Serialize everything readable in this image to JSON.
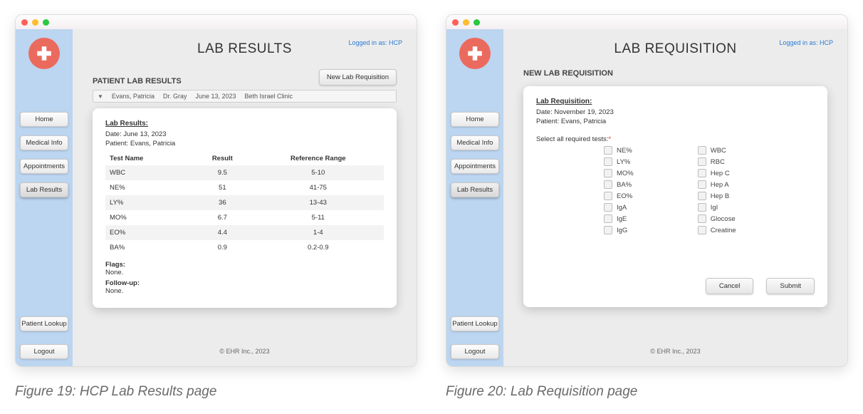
{
  "common": {
    "login_status_prefix": "Logged in as: ",
    "login_role": "HCP",
    "footer": "© EHR Inc., 2023",
    "nav": {
      "home": "Home",
      "medical_info": "Medical Info",
      "appointments": "Appointments",
      "lab_results": "Lab Results",
      "patient_lookup": "Patient Lookup",
      "logout": "Logout"
    },
    "colors": {
      "sidebar_bg": "#bcd5f0",
      "main_bg": "#ececec",
      "logo_bg": "#eb6a5e",
      "button_border": "#c7c7c7",
      "link": "#2a7bd4"
    }
  },
  "left": {
    "page_title": "LAB RESULTS",
    "section_heading": "PATIENT LAB RESULTS",
    "new_req_button": "New Lab Requisition",
    "summary": {
      "patient": "Evans, Patricia",
      "doctor": "Dr. Gray",
      "date": "June 13, 2023",
      "clinic": "Beth Israel Clinic"
    },
    "card": {
      "title": "Lab Results:",
      "date_label": "Date:",
      "date_value": "June 13, 2023",
      "patient_label": "Patient:",
      "patient_value": "Evans, Patricia",
      "columns": {
        "name": "Test Name",
        "result": "Result",
        "range": "Reference Range"
      },
      "rows": [
        {
          "name": "WBC",
          "result": "9.5",
          "range": "5-10"
        },
        {
          "name": "NE%",
          "result": "51",
          "range": "41-75"
        },
        {
          "name": "LY%",
          "result": "36",
          "range": "13-43"
        },
        {
          "name": "MO%",
          "result": "6.7",
          "range": "5-11"
        },
        {
          "name": "EO%",
          "result": "4.4",
          "range": "1-4"
        },
        {
          "name": "BA%",
          "result": "0.9",
          "range": "0.2-0.9"
        }
      ],
      "flags_label": "Flags:",
      "flags_value": "None.",
      "followup_label": "Follow-up:",
      "followup_value": "None."
    },
    "caption": "Figure 19: HCP Lab Results page"
  },
  "right": {
    "page_title": "LAB REQUISITION",
    "section_heading": "NEW LAB REQUISITION",
    "card": {
      "title": "Lab Requisition:",
      "date_label": "Date:",
      "date_value": "November 19, 2023",
      "patient_label": "Patient:",
      "patient_value": "Evans, Patricia",
      "select_label": "Select all required tests:",
      "asterisk": "*",
      "col1": [
        "NE%",
        "LY%",
        "MO%",
        "BA%",
        "EO%",
        "IgA",
        "IgE",
        "IgG"
      ],
      "col2": [
        "WBC",
        "RBC",
        "Hep C",
        "Hep A",
        "Hep B",
        "IgI",
        "Glocose",
        "Creatine"
      ],
      "cancel": "Cancel",
      "submit": "Submit"
    },
    "caption": "Figure 20: Lab Requisition page"
  }
}
